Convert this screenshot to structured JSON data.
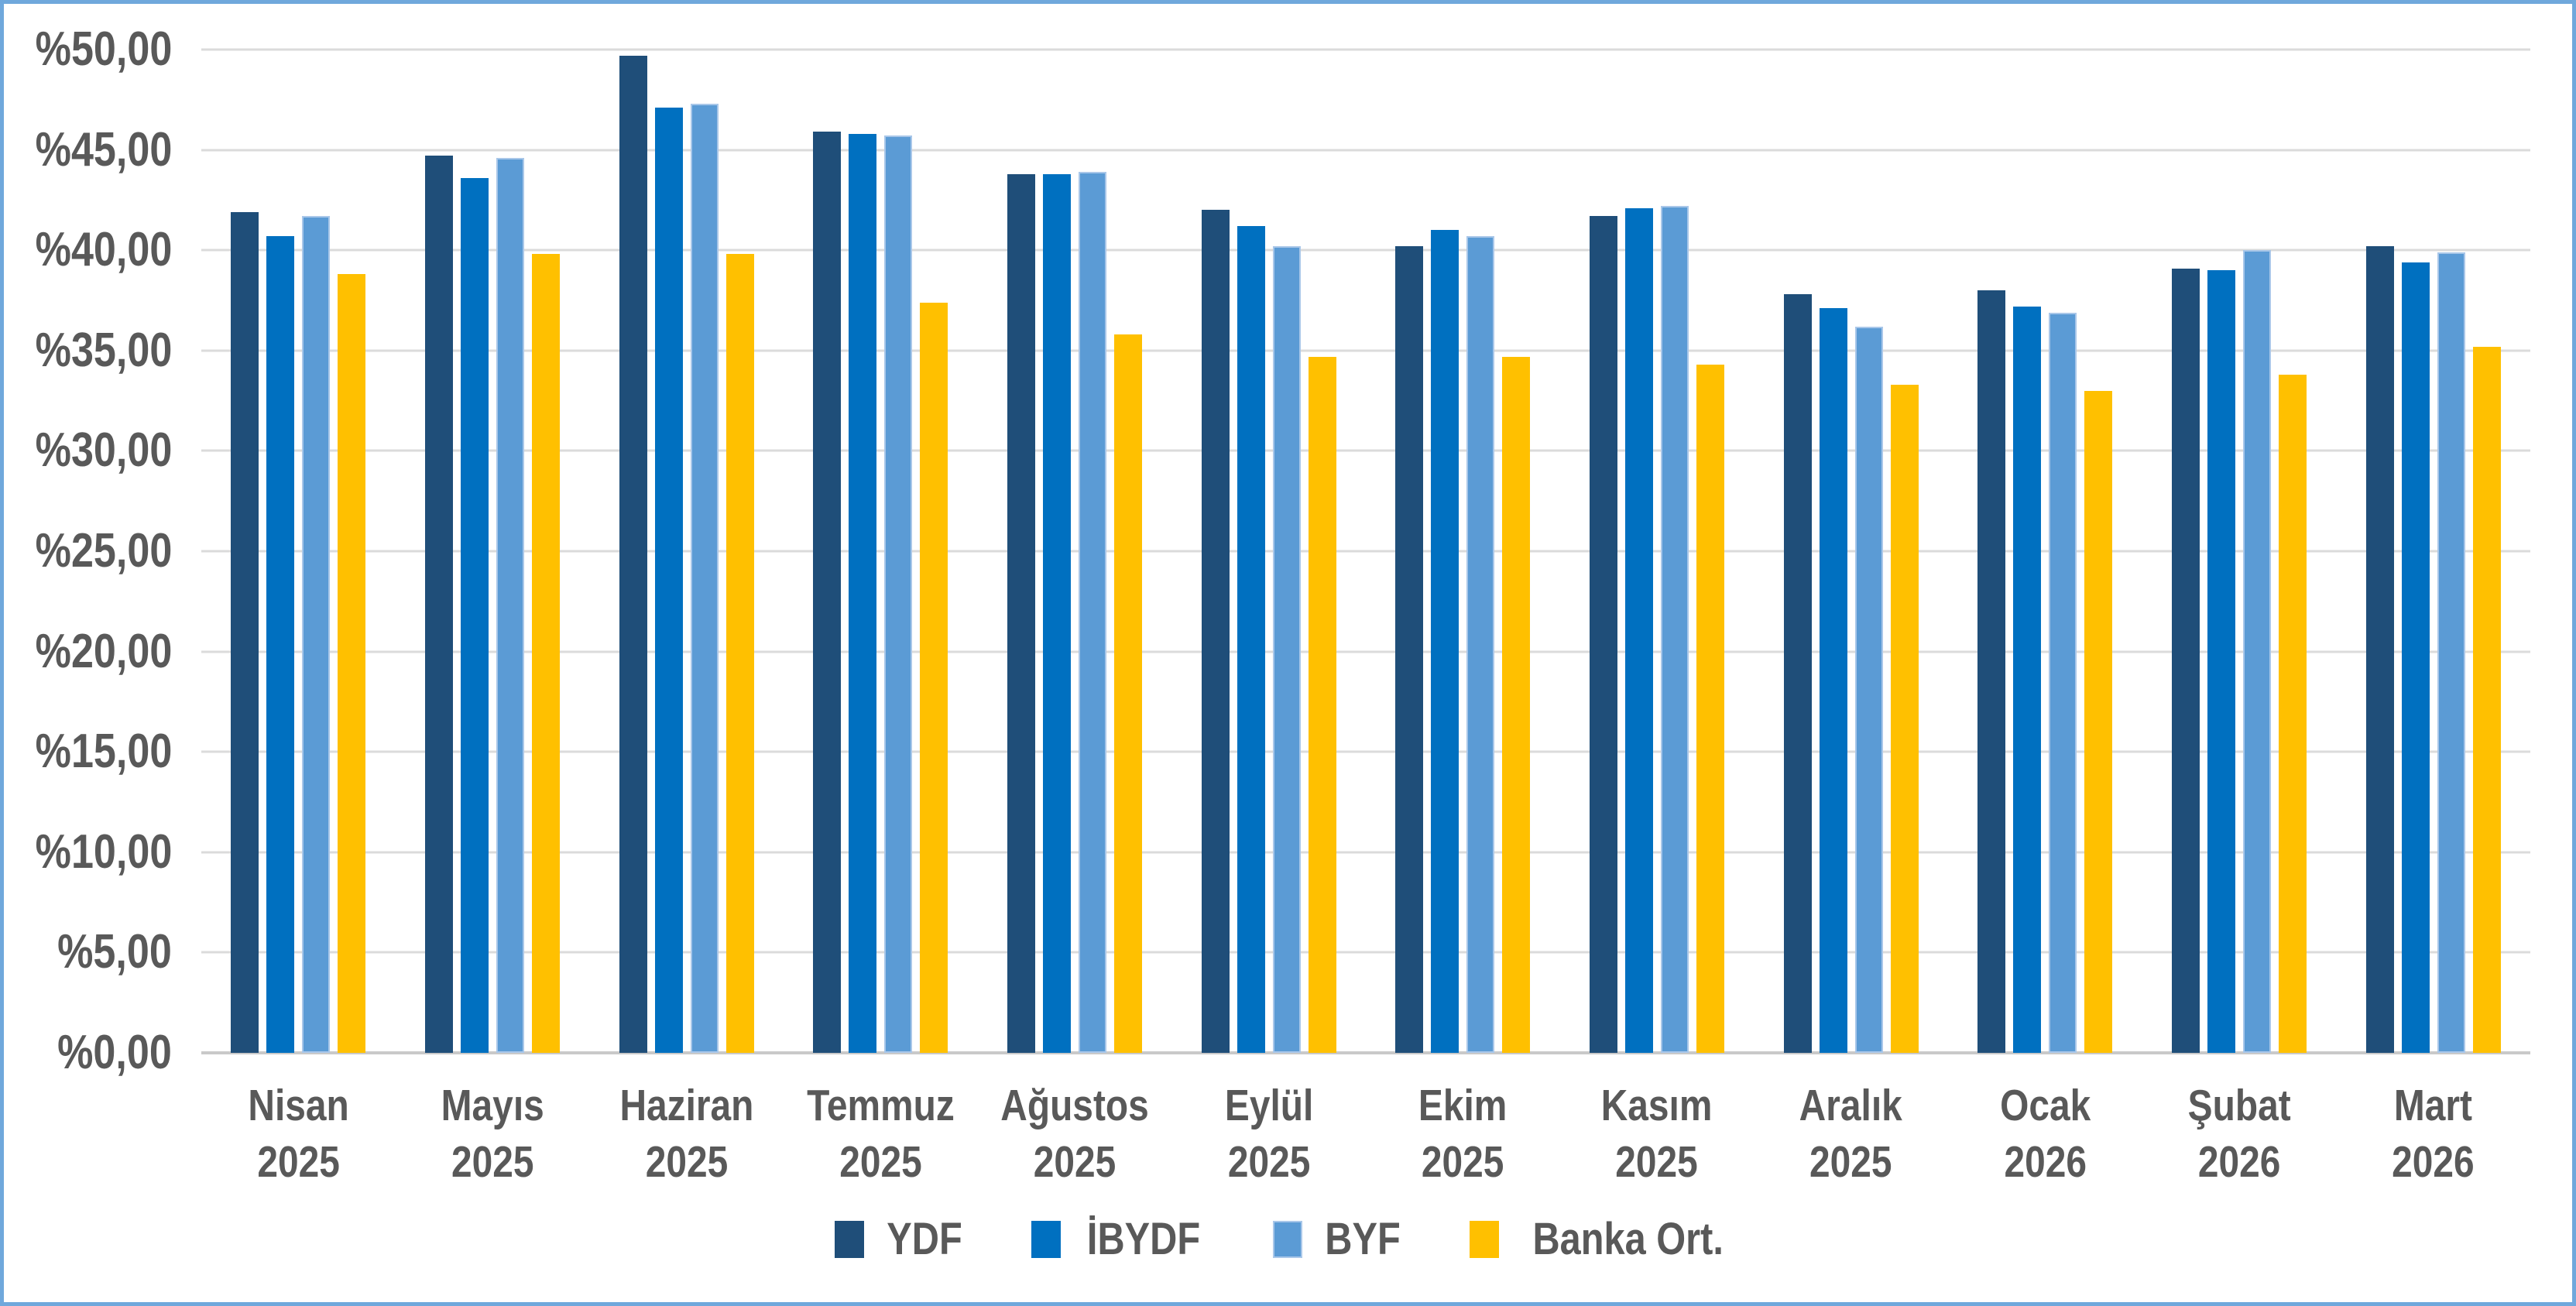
{
  "chart_data": {
    "type": "bar",
    "title": "",
    "categories": [
      "Nisan 2025",
      "Mayıs 2025",
      "Haziran 2025",
      "Temmuz 2025",
      "Ağustos 2025",
      "Eylül 2025",
      "Ekim 2025",
      "Kasım 2025",
      "Aralık 2025",
      "Ocak 2026",
      "Şubat 2026",
      "Mart 2026"
    ],
    "series": [
      {
        "name": "YDF",
        "color": "#1F4E79",
        "values": [
          41.9,
          44.7,
          49.7,
          45.9,
          43.8,
          42.0,
          40.2,
          41.7,
          37.8,
          38.0,
          39.1,
          40.2
        ]
      },
      {
        "name": "İBYDF",
        "color": "#0070C0",
        "values": [
          40.7,
          43.6,
          47.1,
          45.8,
          43.8,
          41.2,
          41.0,
          42.1,
          37.1,
          37.2,
          39.0,
          39.4
        ]
      },
      {
        "name": "BYF",
        "color": "#5B9BD5",
        "border_color": "#A9C7E9",
        "values": [
          41.7,
          44.6,
          47.3,
          45.7,
          43.9,
          40.2,
          40.7,
          42.2,
          36.2,
          36.9,
          40.0,
          39.9
        ]
      },
      {
        "name": "Banka Ort.",
        "color": "#FFC000",
        "values": [
          38.8,
          39.8,
          39.8,
          37.4,
          35.8,
          34.7,
          34.7,
          34.3,
          33.3,
          33.0,
          33.8,
          35.2
        ]
      }
    ],
    "y_axis": {
      "min": 0,
      "max": 50,
      "step": 5,
      "tick_labels": [
        "%50,00",
        "%45,00",
        "%40,00",
        "%35,00",
        "%30,00",
        "%25,00",
        "%20,00",
        "%15,00",
        "%10,00",
        "%5,00",
        "%0,00"
      ],
      "number_format": "percent_prefix_comma_decimal"
    },
    "grid": true,
    "legend_position": "bottom",
    "legend_labels": [
      "YDF",
      "İBYDF",
      "BYF",
      "Banka Ort."
    ]
  },
  "colors": {
    "background": "#FFFFFF",
    "frame_border": "#6FA8DC",
    "gridline": "#DBDBDB",
    "axis_line": "#C9C9C9",
    "label_text": "#595959"
  }
}
